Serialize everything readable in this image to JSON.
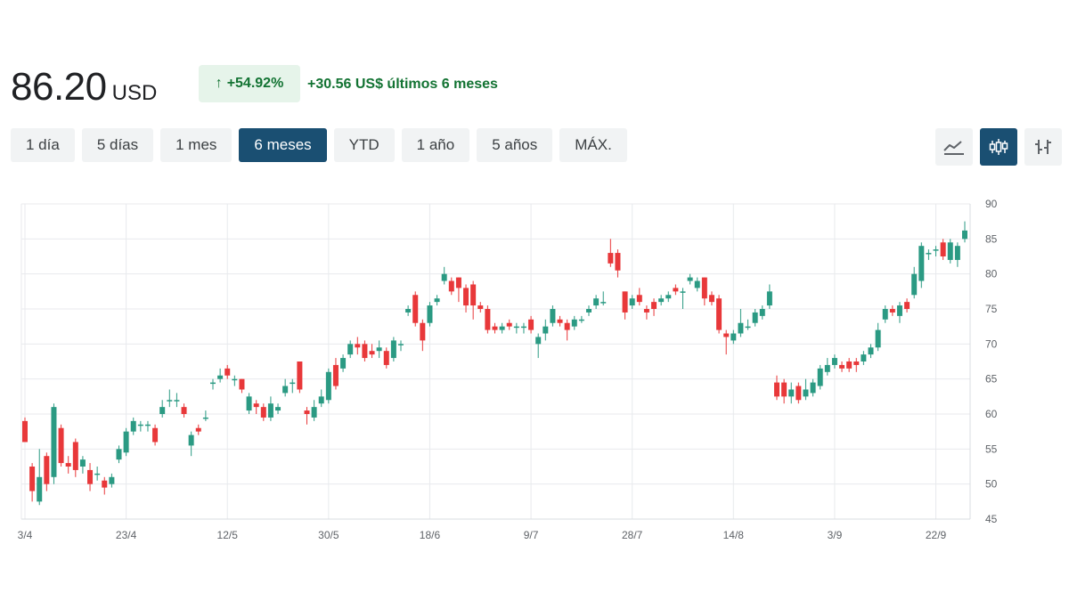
{
  "quote": {
    "price": "86.20",
    "currency": "USD",
    "change_arrow": "↑",
    "change_percent": "+54.92%",
    "change_amount": "+30.56",
    "change_suffix": "US$ últimos 6 meses"
  },
  "range_tabs": [
    {
      "label": "1 día",
      "active": false
    },
    {
      "label": "5 días",
      "active": false
    },
    {
      "label": "1 mes",
      "active": false
    },
    {
      "label": "6 meses",
      "active": true
    },
    {
      "label": "YTD",
      "active": false
    },
    {
      "label": "1 año",
      "active": false
    },
    {
      "label": "5 años",
      "active": false
    },
    {
      "label": "MÁX.",
      "active": false
    }
  ],
  "view_buttons": [
    {
      "icon": "line-chart-icon",
      "active": false
    },
    {
      "icon": "candlestick-chart-icon",
      "active": true
    },
    {
      "icon": "ohlc-chart-icon",
      "active": false
    }
  ],
  "colors": {
    "up": "#2b9a83",
    "down": "#e8383a",
    "positive_text": "#137333",
    "positive_bg": "#e6f4ea",
    "accent": "#1a4f72"
  },
  "chart_data": {
    "type": "candlestick",
    "x_tick_labels": [
      "3/4",
      "23/4",
      "12/5",
      "30/5",
      "18/6",
      "9/7",
      "28/7",
      "14/8",
      "3/9",
      "22/9"
    ],
    "x_tick_index": [
      0,
      14,
      28,
      42,
      56,
      70,
      84,
      98,
      112,
      126
    ],
    "y_ticks": [
      45,
      50,
      55,
      60,
      65,
      70,
      75,
      80,
      85,
      90
    ],
    "ylim": [
      45,
      90
    ],
    "y_axis_position": "right",
    "grid": true,
    "candles": [
      [
        0,
        59,
        56,
        59.5,
        56
      ],
      [
        1,
        52.5,
        49,
        53,
        47.5
      ],
      [
        2,
        47.5,
        51,
        55,
        47
      ],
      [
        3,
        54,
        50,
        54.5,
        49
      ],
      [
        4,
        51,
        61,
        61.5,
        50
      ],
      [
        5,
        58,
        53,
        58.5,
        52.5
      ],
      [
        6,
        53,
        52.5,
        54,
        51.5
      ],
      [
        7,
        56,
        52,
        56.5,
        51
      ],
      [
        8,
        52.5,
        53.5,
        54,
        51.5
      ],
      [
        9,
        52,
        50,
        53,
        49
      ],
      [
        10,
        51.5,
        51.5,
        52.5,
        50.5
      ],
      [
        11,
        50.5,
        49.5,
        51,
        48.5
      ],
      [
        12,
        50,
        51,
        51.5,
        49.5
      ],
      [
        13,
        53.5,
        55,
        55.5,
        53
      ],
      [
        14,
        54.5,
        57.5,
        58,
        54
      ],
      [
        15,
        57.5,
        59,
        59.5,
        57
      ],
      [
        16,
        58.5,
        58.5,
        59,
        57.5
      ],
      [
        17,
        58.5,
        58.5,
        59,
        57.5
      ],
      [
        18,
        58,
        56,
        58.5,
        55.5
      ],
      [
        19,
        60,
        61,
        62,
        59.5
      ],
      [
        20,
        62,
        62,
        63.5,
        61
      ],
      [
        21,
        62,
        62,
        63,
        61
      ],
      [
        22,
        61,
        60,
        61.5,
        59.5
      ],
      [
        23,
        55.5,
        57,
        57.5,
        54
      ],
      [
        24,
        58,
        57.5,
        58.5,
        57
      ],
      [
        25,
        59.5,
        59.5,
        60.5,
        59
      ],
      [
        26,
        64.5,
        64.5,
        65,
        63.5
      ],
      [
        27,
        65,
        65.5,
        66.5,
        64.5
      ],
      [
        28,
        66.5,
        65.5,
        67,
        65
      ],
      [
        29,
        65,
        65,
        65.5,
        64
      ],
      [
        30,
        65,
        63.5,
        65,
        63
      ],
      [
        31,
        60.5,
        62.5,
        63,
        60
      ],
      [
        32,
        61.5,
        61,
        62,
        60
      ],
      [
        33,
        61,
        59.5,
        61.5,
        59
      ],
      [
        34,
        59.5,
        61.5,
        62.5,
        59
      ],
      [
        35,
        60.5,
        61,
        61.5,
        60
      ],
      [
        36,
        63,
        64,
        65,
        62.5
      ],
      [
        37,
        64.5,
        64.5,
        65,
        63
      ],
      [
        38,
        67.5,
        63.5,
        67.5,
        63
      ],
      [
        39,
        60.5,
        60,
        61,
        58.5
      ],
      [
        40,
        59.5,
        61,
        62,
        59
      ],
      [
        41,
        61.5,
        62.5,
        63.5,
        61
      ],
      [
        42,
        62,
        66,
        66.5,
        61.5
      ],
      [
        43,
        67,
        64,
        68,
        63.5
      ],
      [
        44,
        66.5,
        68,
        68.5,
        66
      ],
      [
        45,
        68.5,
        70,
        70.5,
        68
      ],
      [
        46,
        70,
        69.5,
        71,
        68.5
      ],
      [
        47,
        70,
        68,
        70.5,
        67.5
      ],
      [
        48,
        69,
        68.5,
        70,
        68
      ],
      [
        49,
        69,
        69.5,
        70.5,
        68
      ],
      [
        50,
        69,
        67,
        69.5,
        66.5
      ],
      [
        51,
        68,
        70.5,
        71,
        67.5
      ],
      [
        52,
        70,
        70,
        70.5,
        69
      ],
      [
        53,
        74.5,
        75,
        75.5,
        74
      ],
      [
        54,
        77,
        73,
        77.5,
        72.5
      ],
      [
        55,
        73,
        70.5,
        73.5,
        69
      ],
      [
        56,
        73,
        75.5,
        76,
        72.5
      ],
      [
        57,
        76,
        76.5,
        77,
        75.5
      ],
      [
        58,
        79,
        80,
        81,
        78.5
      ],
      [
        59,
        79,
        77.5,
        79.5,
        77
      ],
      [
        60,
        79.5,
        78,
        79.5,
        76
      ],
      [
        61,
        78,
        75.5,
        78.5,
        74.5
      ],
      [
        62,
        78.5,
        75.5,
        79,
        73.5
      ],
      [
        63,
        75.5,
        75,
        76,
        74.5
      ],
      [
        64,
        75,
        72,
        75.5,
        71.5
      ],
      [
        65,
        72.5,
        72,
        73,
        71.5
      ],
      [
        66,
        72,
        72.5,
        73,
        71.5
      ],
      [
        67,
        73,
        72.5,
        73.5,
        72
      ],
      [
        68,
        72.5,
        72.5,
        73,
        71.5
      ],
      [
        69,
        72.5,
        72.5,
        73,
        71.5
      ],
      [
        70,
        73.5,
        72,
        74,
        71.5
      ],
      [
        71,
        70,
        71,
        71.5,
        68
      ],
      [
        72,
        71.5,
        72.5,
        73.5,
        70.5
      ],
      [
        73,
        73,
        75,
        75.5,
        72.5
      ],
      [
        74,
        73.5,
        73,
        74,
        72.5
      ],
      [
        75,
        73,
        72,
        73.5,
        70.5
      ],
      [
        76,
        72.5,
        73.5,
        74,
        72
      ],
      [
        77,
        73.5,
        73.5,
        74,
        73
      ],
      [
        78,
        74.5,
        75,
        75.5,
        74
      ],
      [
        79,
        75.5,
        76.5,
        77,
        75
      ],
      [
        80,
        76,
        76,
        77.5,
        75.5
      ],
      [
        81,
        83,
        81.5,
        85,
        81
      ],
      [
        82,
        83,
        80.5,
        83.5,
        79.5
      ],
      [
        83,
        77.5,
        74.5,
        77.5,
        73.5
      ],
      [
        84,
        75.5,
        76.5,
        77,
        75
      ],
      [
        85,
        77,
        76,
        78,
        75.5
      ],
      [
        86,
        75,
        74.5,
        75.5,
        73.5
      ],
      [
        87,
        76,
        75,
        76.5,
        74
      ],
      [
        88,
        76,
        76.5,
        77,
        75.5
      ],
      [
        89,
        76.5,
        77,
        77.5,
        76
      ],
      [
        90,
        78,
        77.5,
        78.5,
        77
      ],
      [
        91,
        77.5,
        77.5,
        78,
        75
      ],
      [
        92,
        79,
        79.5,
        80,
        78.5
      ],
      [
        93,
        78,
        79,
        79.5,
        77.5
      ],
      [
        94,
        79.5,
        76.5,
        79.5,
        75.5
      ],
      [
        95,
        77,
        76,
        77.5,
        75.5
      ],
      [
        96,
        76.5,
        72,
        77,
        71.5
      ],
      [
        97,
        71.5,
        71,
        72,
        68.5
      ],
      [
        98,
        70.5,
        71.5,
        72,
        70
      ],
      [
        99,
        71.5,
        73,
        75,
        71
      ],
      [
        100,
        72.5,
        72.5,
        73.5,
        72
      ],
      [
        101,
        73,
        74.5,
        75,
        72.5
      ],
      [
        102,
        74,
        75,
        75.5,
        73.5
      ],
      [
        103,
        75.5,
        77.5,
        78.5,
        75
      ],
      [
        104,
        64.5,
        62.5,
        65.5,
        62
      ],
      [
        105,
        64.5,
        62.5,
        65,
        61.5
      ],
      [
        106,
        62.5,
        63.5,
        64.5,
        61.5
      ],
      [
        107,
        64,
        62,
        64.5,
        61.5
      ],
      [
        108,
        62.5,
        63.5,
        65,
        62
      ],
      [
        109,
        63,
        64.5,
        65,
        62.5
      ],
      [
        110,
        64,
        66.5,
        67,
        63.5
      ],
      [
        111,
        66,
        67,
        68,
        65.5
      ],
      [
        112,
        67,
        68,
        68.5,
        66.5
      ],
      [
        113,
        67,
        66.5,
        67.5,
        66
      ],
      [
        114,
        67.5,
        66.5,
        68,
        66
      ],
      [
        115,
        67.5,
        67,
        68,
        66
      ],
      [
        116,
        67.5,
        68.5,
        69,
        67
      ],
      [
        117,
        68.5,
        69.5,
        70,
        68
      ],
      [
        118,
        69.5,
        72,
        73,
        69
      ],
      [
        119,
        73.5,
        75,
        75.5,
        73
      ],
      [
        120,
        75,
        74.5,
        75.5,
        74
      ],
      [
        121,
        74,
        75.5,
        76,
        73
      ],
      [
        122,
        76,
        75,
        76.5,
        74.5
      ],
      [
        123,
        77,
        80,
        81,
        76.5
      ],
      [
        124,
        79,
        84,
        84.5,
        78
      ],
      [
        125,
        83,
        83,
        83.5,
        82
      ],
      [
        126,
        83.5,
        83.5,
        84,
        82.5
      ],
      [
        127,
        84.5,
        82.5,
        85,
        82
      ],
      [
        128,
        82,
        84.5,
        85,
        81.5
      ],
      [
        129,
        82,
        84,
        84.5,
        81
      ],
      [
        130,
        85,
        86.2,
        87.5,
        84.5
      ]
    ]
  }
}
